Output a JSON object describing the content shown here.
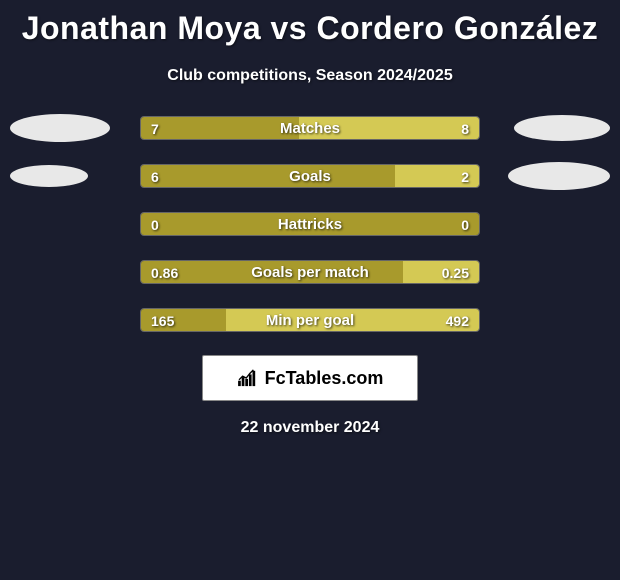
{
  "title": "Jonathan Moya vs Cordero González",
  "subtitle": "Club competitions, Season 2024/2025",
  "colors": {
    "background": "#1a1d2e",
    "bar_left": "#a89a2c",
    "bar_right": "#d4c954",
    "bar_border": "#666666",
    "avatar_fill": "#e8e8e8",
    "text": "#ffffff"
  },
  "bar_container_width": 340,
  "rows": [
    {
      "label": "Matches",
      "left_value": "7",
      "right_value": "8",
      "left_pct": 46.7,
      "right_pct": 53.3,
      "avatar_left": {
        "w": 100,
        "h": 28
      },
      "avatar_right": {
        "w": 96,
        "h": 26
      }
    },
    {
      "label": "Goals",
      "left_value": "6",
      "right_value": "2",
      "left_pct": 75,
      "right_pct": 25,
      "avatar_left": {
        "w": 78,
        "h": 22
      },
      "avatar_right": {
        "w": 102,
        "h": 28
      }
    },
    {
      "label": "Hattricks",
      "left_value": "0",
      "right_value": "0",
      "left_pct": 100,
      "right_pct": 0,
      "avatar_left": null,
      "avatar_right": null
    },
    {
      "label": "Goals per match",
      "left_value": "0.86",
      "right_value": "0.25",
      "left_pct": 77.5,
      "right_pct": 22.5,
      "avatar_left": null,
      "avatar_right": null
    },
    {
      "label": "Min per goal",
      "left_value": "165",
      "right_value": "492",
      "left_pct": 25.1,
      "right_pct": 74.9,
      "avatar_left": null,
      "avatar_right": null
    }
  ],
  "brand": "FcTables.com",
  "date": "22 november 2024"
}
